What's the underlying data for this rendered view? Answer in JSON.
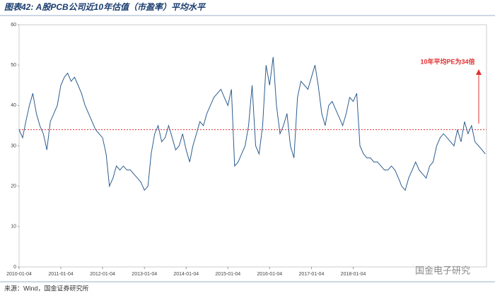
{
  "chart_data": {
    "type": "line",
    "title": "图表42: A股PCB公司近10年估值（市盈率）平均水平",
    "source": "来源：Wind，国金证券研究所",
    "watermark": "国金电子研究",
    "annotation": "10年平均PE为34倍",
    "reference_line": {
      "value": 34,
      "color": "#e03030"
    },
    "x": [
      "2010-01-04",
      "2010-02-04",
      "2010-03-04",
      "2010-04-04",
      "2010-05-04",
      "2010-06-04",
      "2010-07-04",
      "2010-08-04",
      "2010-09-04",
      "2010-10-04",
      "2010-11-04",
      "2010-12-04",
      "2011-01-04",
      "2011-02-04",
      "2011-03-04",
      "2011-04-04",
      "2011-05-04",
      "2011-06-04",
      "2011-07-04",
      "2011-08-04",
      "2011-09-04",
      "2011-10-04",
      "2011-11-04",
      "2011-12-04",
      "2012-01-04",
      "2012-02-04",
      "2012-03-04",
      "2012-04-04",
      "2012-05-04",
      "2012-06-04",
      "2012-07-04",
      "2012-08-04",
      "2012-09-04",
      "2012-10-04",
      "2012-11-04",
      "2012-12-04",
      "2013-01-04",
      "2013-02-04",
      "2013-03-04",
      "2013-04-04",
      "2013-05-04",
      "2013-06-04",
      "2013-07-04",
      "2013-08-04",
      "2013-09-04",
      "2013-10-04",
      "2013-11-04",
      "2013-12-04",
      "2014-01-04",
      "2014-02-04",
      "2014-03-04",
      "2014-04-04",
      "2014-05-04",
      "2014-06-04",
      "2014-07-04",
      "2014-08-04",
      "2014-09-04",
      "2014-10-04",
      "2014-11-04",
      "2014-12-04",
      "2015-01-04",
      "2015-02-04",
      "2015-03-04",
      "2015-04-04",
      "2015-05-04",
      "2015-06-04",
      "2015-07-04",
      "2015-08-04",
      "2015-09-04",
      "2015-10-04",
      "2015-11-04",
      "2015-12-04",
      "2016-01-04",
      "2016-02-04",
      "2016-03-04",
      "2016-04-04",
      "2016-05-04",
      "2016-06-04",
      "2016-07-04",
      "2016-08-04",
      "2016-09-04",
      "2016-10-04",
      "2016-11-04",
      "2016-12-04",
      "2017-01-04",
      "2017-02-04",
      "2017-03-04",
      "2017-04-04",
      "2017-05-04",
      "2017-06-04",
      "2017-07-04",
      "2017-08-04",
      "2017-09-04",
      "2017-10-04",
      "2017-11-04",
      "2017-12-04",
      "2018-01-04",
      "2018-02-04",
      "2018-03-04",
      "2018-04-04",
      "2018-05-04",
      "2018-06-04",
      "2018-07-04",
      "2018-08-04",
      "2018-09-04",
      "2018-10-04",
      "2018-11-04",
      "2018-12-04",
      "2019-01-04",
      "2019-02-04",
      "2019-03-04",
      "2019-04-04",
      "2019-05-04",
      "2019-06-04",
      "2019-07-04",
      "2019-08-04",
      "2019-09-04",
      "2019-10-04",
      "2019-11-04",
      "2019-12-04",
      "2020-01-04",
      "2020-02-04",
      "2020-03-04",
      "2020-04-04",
      "2020-05-04",
      "2020-06-04",
      "2020-07-04",
      "2020-08-04",
      "2020-09-04",
      "2020-10-04",
      "2020-11-04",
      "2020-12-04",
      "2021-01-04",
      "2021-02-04",
      "2021-03-04"
    ],
    "series": [
      {
        "name": "PE",
        "color": "#2c5d8f",
        "values": [
          34,
          32,
          36,
          40,
          43,
          38,
          35,
          33,
          29,
          36,
          38,
          40,
          45,
          47,
          48,
          46,
          47,
          45,
          43,
          40,
          38,
          36,
          34,
          33,
          32,
          28,
          20,
          22,
          25,
          24,
          25,
          24,
          24,
          23,
          22,
          21,
          19,
          20,
          28,
          33,
          35,
          31,
          32,
          35,
          32,
          29,
          30,
          33,
          29,
          26,
          30,
          33,
          36,
          35,
          38,
          40,
          42,
          43,
          44,
          42,
          40,
          44,
          25,
          26,
          28,
          30,
          35,
          45,
          30,
          28,
          35,
          50,
          45,
          52,
          40,
          33,
          35,
          38,
          30,
          27,
          42,
          46,
          45,
          44,
          47,
          50,
          45,
          38,
          35,
          40,
          41,
          39,
          37,
          35,
          38,
          42,
          41,
          43,
          30,
          28,
          27,
          27,
          26,
          26,
          25,
          24,
          24,
          25,
          24,
          22,
          20,
          19,
          22,
          24,
          26,
          24,
          23,
          22,
          25,
          26,
          30,
          32,
          33,
          32,
          31,
          30,
          34,
          31,
          36,
          33,
          35,
          31,
          30,
          29,
          28
        ]
      }
    ],
    "xlim": [
      "2010-01-04",
      "2021-03-15"
    ],
    "xticks": [
      "2010-01-04",
      "2011-01-04",
      "2012-01-04",
      "2013-01-04",
      "2014-01-04",
      "2015-01-04",
      "2016-01-04",
      "2017-01-04",
      "2018-01-04"
    ],
    "ylim": [
      0,
      60
    ],
    "yticks": [
      0,
      10,
      20,
      30,
      40,
      50,
      60
    ]
  }
}
